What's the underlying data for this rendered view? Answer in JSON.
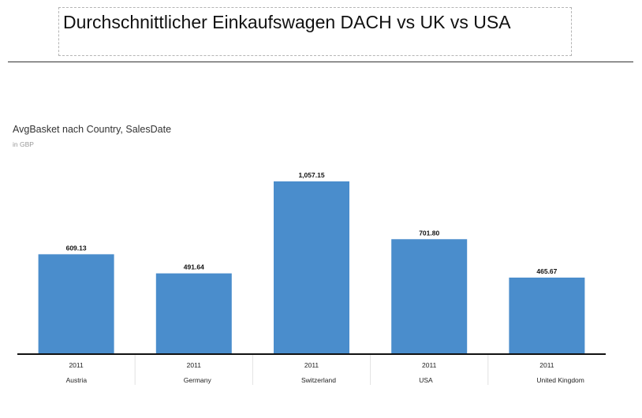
{
  "header": {
    "title": "Durchschnittlicher Einkaufswagen DACH vs UK vs USA"
  },
  "chart_data": {
    "type": "bar",
    "title": "AvgBasket nach Country, SalesDate",
    "subtitle": "in GBP",
    "categories": [
      {
        "year": "2011",
        "country": "Austria"
      },
      {
        "year": "2011",
        "country": "Germany"
      },
      {
        "year": "2011",
        "country": "Switzerland"
      },
      {
        "year": "2011",
        "country": "USA"
      },
      {
        "year": "2011",
        "country": "United Kingdom"
      }
    ],
    "values": [
      609.13,
      491.64,
      1057.15,
      701.8,
      465.67
    ],
    "value_labels": [
      "609.13",
      "491.64",
      "1,057.15",
      "701.80",
      "465.67"
    ],
    "ylim": [
      0,
      1057.15
    ],
    "bar_color": "#4a8dcc",
    "grid": false,
    "legend": "none"
  }
}
